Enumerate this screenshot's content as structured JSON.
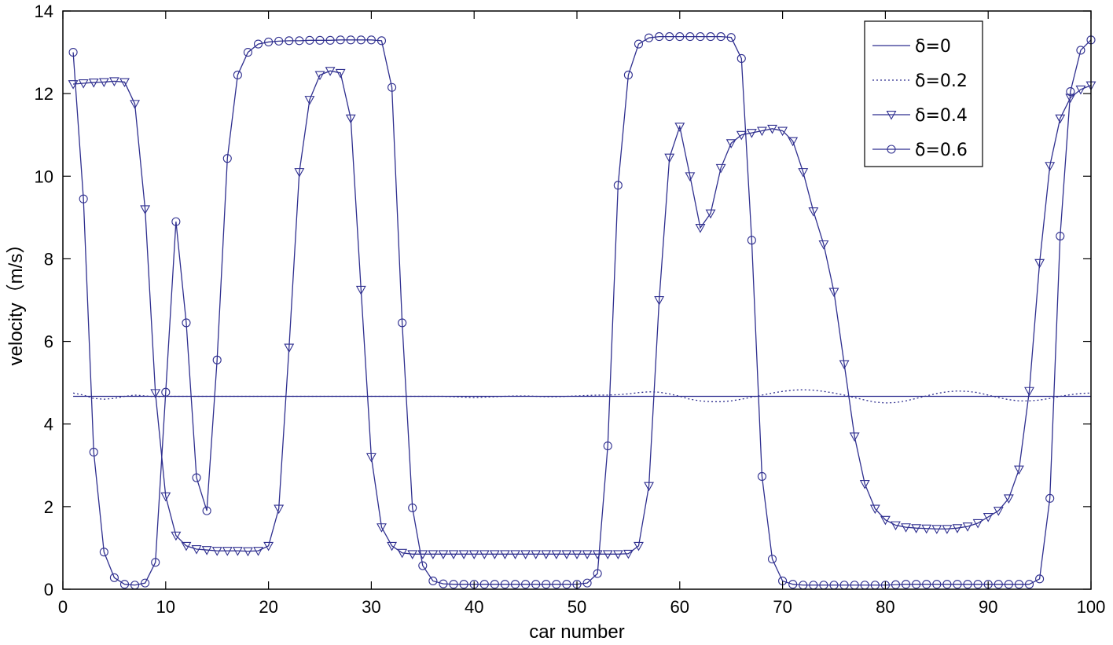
{
  "chart_data": {
    "type": "line",
    "xlabel": "car number",
    "ylabel": "velocity（m/s）",
    "xlim": [
      0,
      100
    ],
    "ylim": [
      0,
      14
    ],
    "xticks": [
      0,
      10,
      20,
      30,
      40,
      50,
      60,
      70,
      80,
      90,
      100
    ],
    "yticks": [
      0,
      2,
      4,
      6,
      8,
      10,
      12,
      14
    ],
    "grid": false,
    "legend_position": "top-right",
    "colors": {
      "series": "#2f2f8f",
      "axis": "#000000"
    },
    "x": [
      1,
      2,
      3,
      4,
      5,
      6,
      7,
      8,
      9,
      10,
      11,
      12,
      13,
      14,
      15,
      16,
      17,
      18,
      19,
      20,
      21,
      22,
      23,
      24,
      25,
      26,
      27,
      28,
      29,
      30,
      31,
      32,
      33,
      34,
      35,
      36,
      37,
      38,
      39,
      40,
      41,
      42,
      43,
      44,
      45,
      46,
      47,
      48,
      49,
      50,
      51,
      52,
      53,
      54,
      55,
      56,
      57,
      58,
      59,
      60,
      61,
      62,
      63,
      64,
      65,
      66,
      67,
      68,
      69,
      70,
      71,
      72,
      73,
      74,
      75,
      76,
      77,
      78,
      79,
      80,
      81,
      82,
      83,
      84,
      85,
      86,
      87,
      88,
      89,
      90,
      91,
      92,
      93,
      94,
      95,
      96,
      97,
      98,
      99,
      100
    ],
    "series": [
      {
        "name": "δ=0",
        "line": "solid",
        "marker": "none",
        "values": [
          4.67,
          4.67,
          4.67,
          4.67,
          4.67,
          4.67,
          4.67,
          4.67,
          4.67,
          4.67,
          4.67,
          4.67,
          4.67,
          4.67,
          4.67,
          4.67,
          4.67,
          4.67,
          4.67,
          4.67,
          4.67,
          4.67,
          4.67,
          4.67,
          4.67,
          4.67,
          4.67,
          4.67,
          4.67,
          4.67,
          4.67,
          4.67,
          4.67,
          4.67,
          4.67,
          4.67,
          4.67,
          4.67,
          4.67,
          4.67,
          4.67,
          4.67,
          4.67,
          4.67,
          4.67,
          4.67,
          4.67,
          4.67,
          4.67,
          4.67,
          4.67,
          4.67,
          4.67,
          4.67,
          4.67,
          4.67,
          4.67,
          4.67,
          4.67,
          4.67,
          4.67,
          4.67,
          4.67,
          4.67,
          4.67,
          4.67,
          4.67,
          4.67,
          4.67,
          4.67,
          4.67,
          4.67,
          4.67,
          4.67,
          4.67,
          4.67,
          4.67,
          4.67,
          4.67,
          4.67,
          4.67,
          4.67,
          4.67,
          4.67,
          4.67,
          4.67,
          4.67,
          4.67,
          4.67,
          4.67,
          4.67,
          4.67,
          4.67,
          4.67,
          4.67,
          4.67,
          4.67,
          4.67,
          4.67,
          4.67
        ]
      },
      {
        "name": "δ=0.2",
        "line": "dotted",
        "marker": "none",
        "values": [
          4.75,
          4.7,
          4.62,
          4.6,
          4.62,
          4.67,
          4.7,
          4.68,
          4.66,
          4.67,
          4.67,
          4.67,
          4.67,
          4.67,
          4.67,
          4.67,
          4.67,
          4.67,
          4.67,
          4.67,
          4.67,
          4.67,
          4.67,
          4.67,
          4.67,
          4.67,
          4.67,
          4.67,
          4.67,
          4.67,
          4.67,
          4.67,
          4.67,
          4.67,
          4.67,
          4.67,
          4.67,
          4.66,
          4.65,
          4.64,
          4.65,
          4.66,
          4.67,
          4.68,
          4.68,
          4.67,
          4.66,
          4.66,
          4.67,
          4.68,
          4.69,
          4.7,
          4.7,
          4.71,
          4.73,
          4.76,
          4.78,
          4.77,
          4.73,
          4.67,
          4.6,
          4.56,
          4.54,
          4.54,
          4.56,
          4.6,
          4.65,
          4.7,
          4.75,
          4.79,
          4.82,
          4.83,
          4.82,
          4.79,
          4.75,
          4.7,
          4.64,
          4.58,
          4.53,
          4.51,
          4.52,
          4.56,
          4.62,
          4.68,
          4.74,
          4.78,
          4.8,
          4.79,
          4.76,
          4.7,
          4.64,
          4.59,
          4.56,
          4.56,
          4.58,
          4.62,
          4.67,
          4.71,
          4.74,
          4.75
        ]
      },
      {
        "name": "δ=0.4",
        "line": "solid",
        "marker": "triangle-down",
        "values": [
          12.23,
          12.25,
          12.27,
          12.28,
          12.3,
          12.28,
          11.75,
          9.2,
          4.75,
          2.25,
          1.3,
          1.05,
          0.97,
          0.95,
          0.93,
          0.93,
          0.93,
          0.92,
          0.93,
          1.05,
          1.95,
          5.85,
          10.1,
          11.85,
          12.45,
          12.55,
          12.5,
          11.4,
          7.25,
          3.2,
          1.5,
          1.05,
          0.88,
          0.85,
          0.85,
          0.85,
          0.85,
          0.85,
          0.85,
          0.85,
          0.85,
          0.85,
          0.85,
          0.85,
          0.85,
          0.85,
          0.85,
          0.85,
          0.85,
          0.85,
          0.85,
          0.85,
          0.85,
          0.85,
          0.86,
          1.05,
          2.5,
          7.0,
          10.45,
          11.2,
          10.0,
          8.75,
          9.1,
          10.2,
          10.8,
          11.0,
          11.05,
          11.1,
          11.15,
          11.1,
          10.85,
          10.1,
          9.15,
          8.35,
          7.2,
          5.45,
          3.7,
          2.55,
          1.95,
          1.68,
          1.55,
          1.5,
          1.48,
          1.47,
          1.46,
          1.46,
          1.48,
          1.52,
          1.6,
          1.75,
          1.9,
          2.2,
          2.9,
          4.8,
          7.9,
          10.25,
          11.4,
          11.9,
          12.1,
          12.2
        ]
      },
      {
        "name": "δ=0.6",
        "line": "solid",
        "marker": "circle",
        "values": [
          13.0,
          9.45,
          3.32,
          0.9,
          0.28,
          0.12,
          0.1,
          0.15,
          0.65,
          4.77,
          8.9,
          6.45,
          2.7,
          1.9,
          5.55,
          10.43,
          12.45,
          13.0,
          13.2,
          13.25,
          13.27,
          13.28,
          13.28,
          13.29,
          13.29,
          13.29,
          13.3,
          13.3,
          13.3,
          13.3,
          13.28,
          12.15,
          6.45,
          1.97,
          0.57,
          0.2,
          0.13,
          0.12,
          0.12,
          0.12,
          0.12,
          0.12,
          0.12,
          0.12,
          0.12,
          0.12,
          0.12,
          0.12,
          0.12,
          0.12,
          0.15,
          0.38,
          3.47,
          9.78,
          12.45,
          13.2,
          13.35,
          13.38,
          13.38,
          13.38,
          13.38,
          13.38,
          13.38,
          13.38,
          13.36,
          12.85,
          8.45,
          2.73,
          0.73,
          0.2,
          0.12,
          0.1,
          0.1,
          0.1,
          0.1,
          0.1,
          0.1,
          0.1,
          0.1,
          0.1,
          0.11,
          0.12,
          0.12,
          0.12,
          0.12,
          0.12,
          0.12,
          0.12,
          0.12,
          0.12,
          0.12,
          0.12,
          0.12,
          0.12,
          0.25,
          2.2,
          8.55,
          12.05,
          13.05,
          13.3
        ]
      }
    ]
  }
}
